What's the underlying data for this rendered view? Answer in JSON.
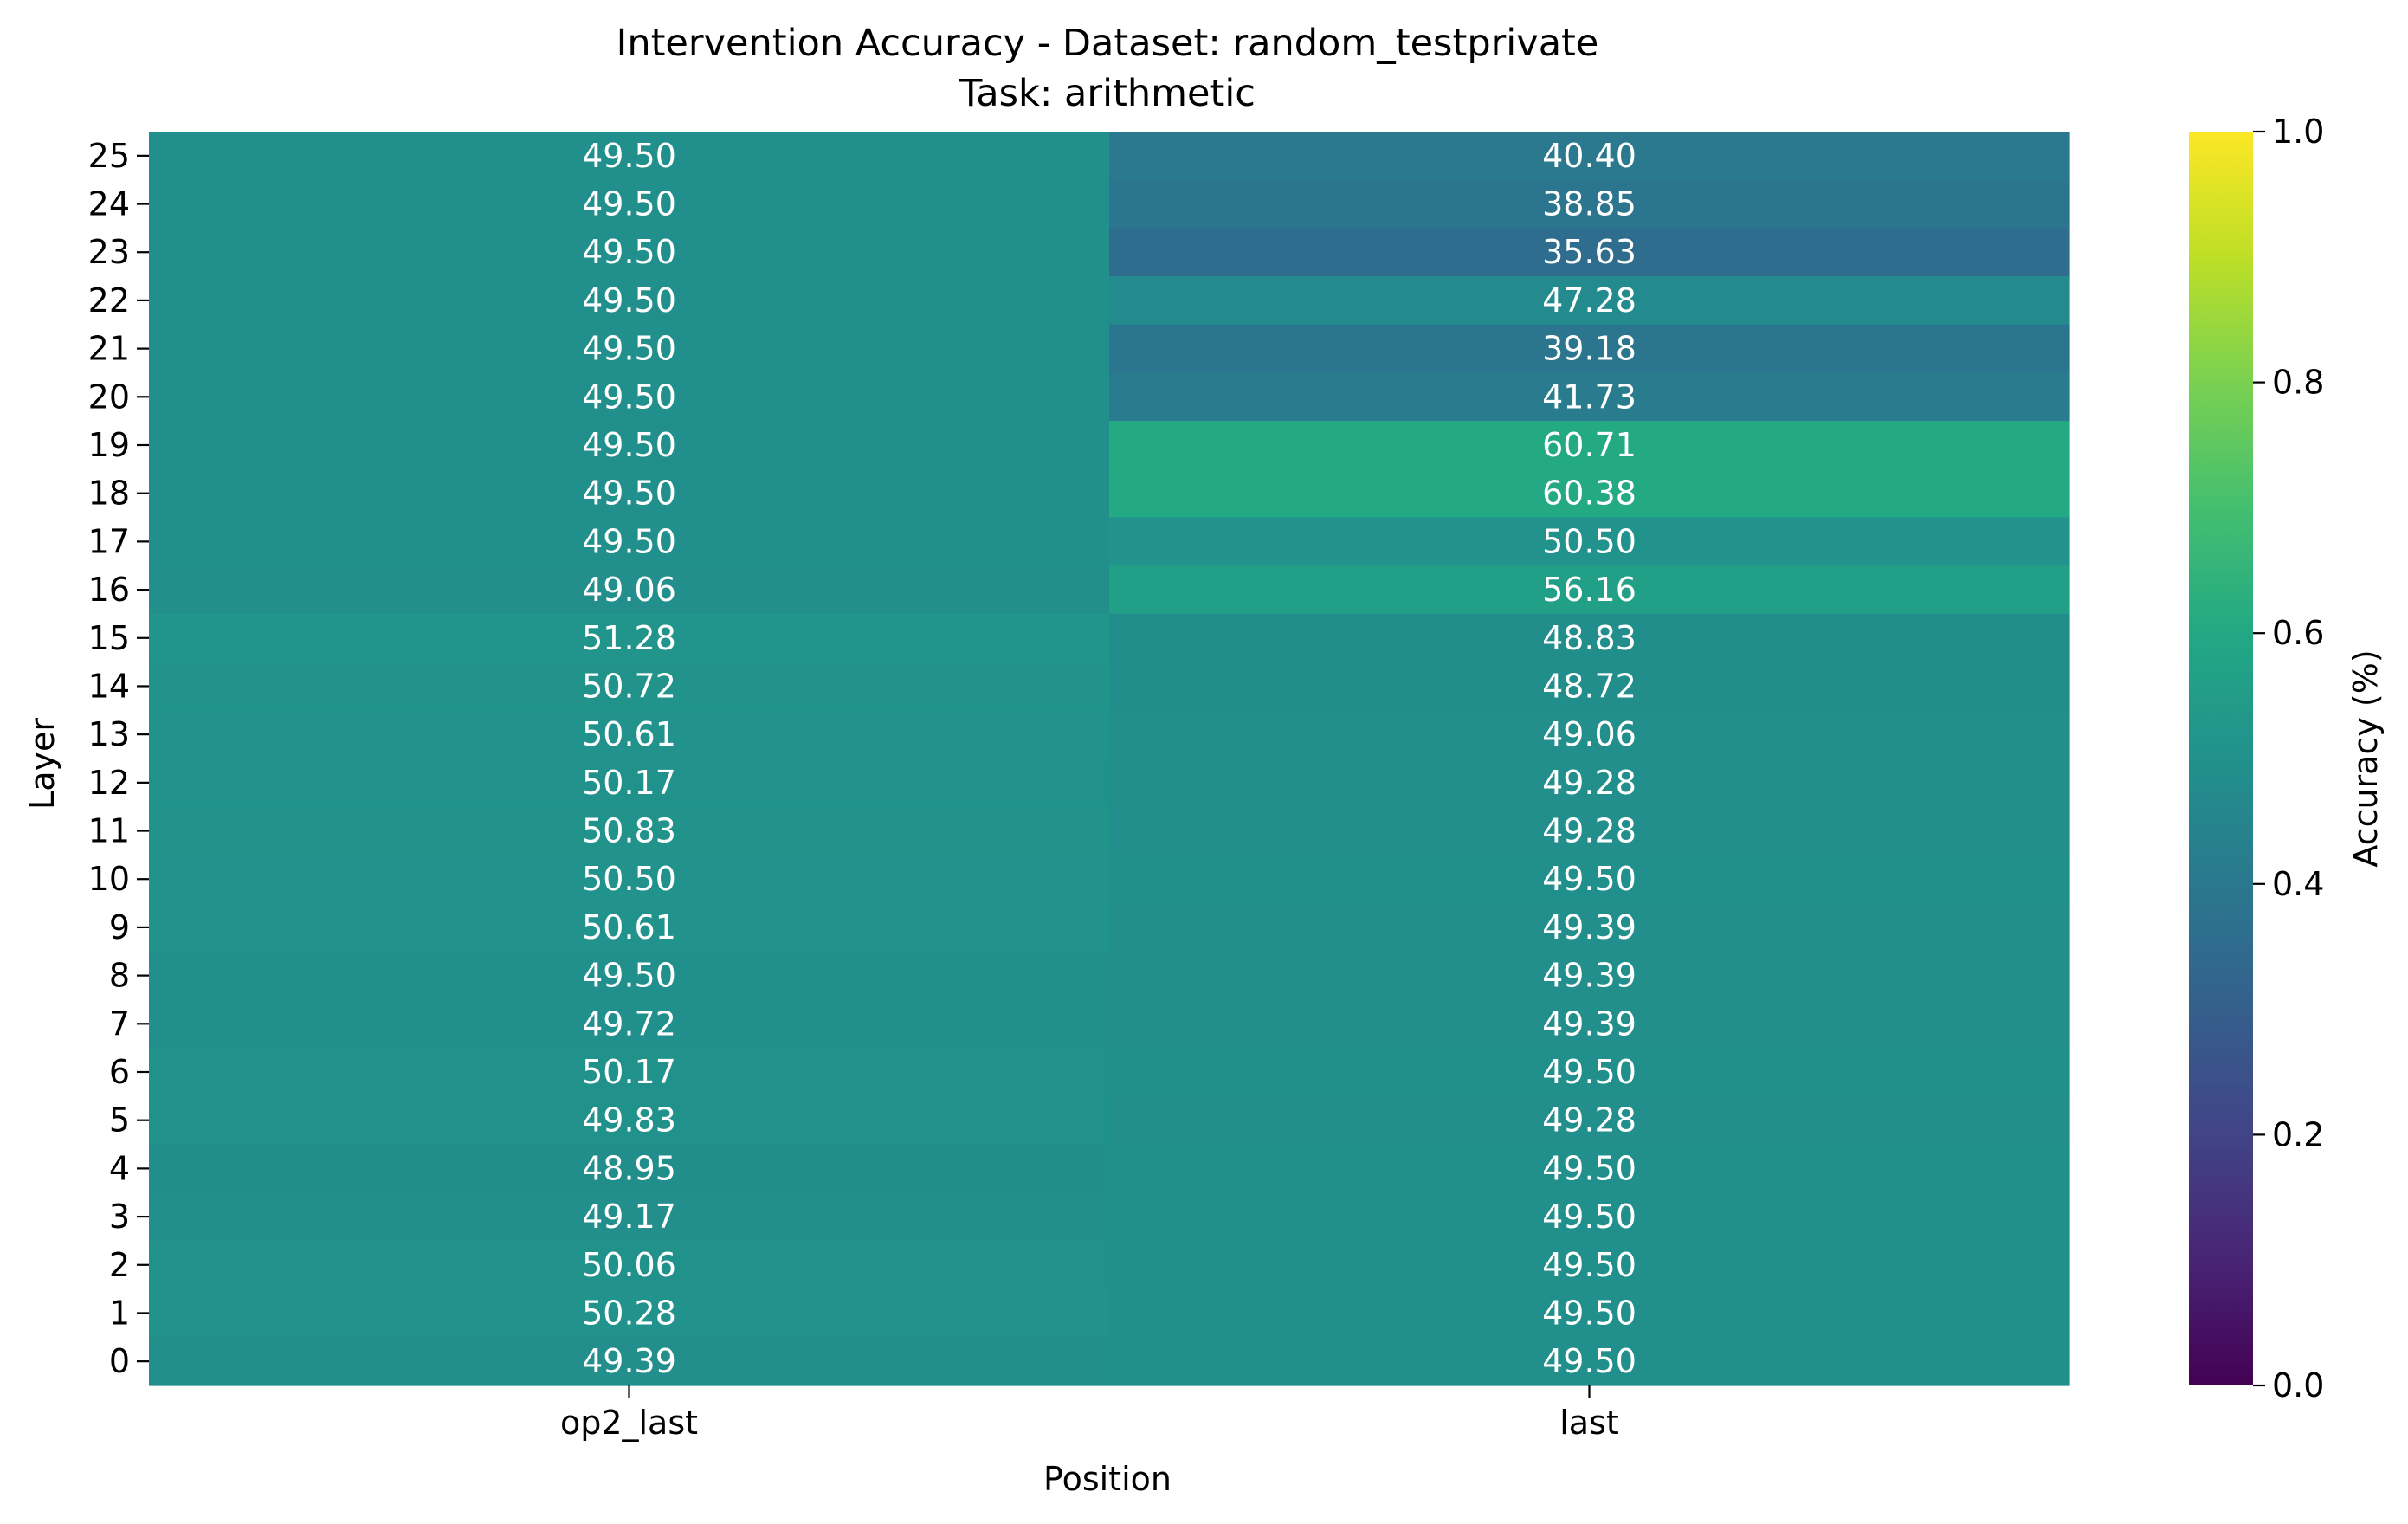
{
  "chart_data": {
    "type": "heatmap",
    "title_line1": "Intervention Accuracy - Dataset: random_testprivate",
    "title_line2": "Task: arithmetic",
    "xlabel": "Position",
    "ylabel": "Layer",
    "colorbar_label": "Accuracy (%)",
    "colormap": "viridis",
    "color_range": [
      0,
      1
    ],
    "colorbar_ticks": [
      "0.0",
      "0.2",
      "0.4",
      "0.6",
      "0.8",
      "1.0"
    ],
    "x_categories": [
      "op2_last",
      "last"
    ],
    "y_categories": [
      "25",
      "24",
      "23",
      "22",
      "21",
      "20",
      "19",
      "18",
      "17",
      "16",
      "15",
      "14",
      "13",
      "12",
      "11",
      "10",
      "9",
      "8",
      "7",
      "6",
      "5",
      "4",
      "3",
      "2",
      "1",
      "0"
    ],
    "values": [
      [
        49.5,
        40.4
      ],
      [
        49.5,
        38.85
      ],
      [
        49.5,
        35.63
      ],
      [
        49.5,
        47.28
      ],
      [
        49.5,
        39.18
      ],
      [
        49.5,
        41.73
      ],
      [
        49.5,
        60.71
      ],
      [
        49.5,
        60.38
      ],
      [
        49.5,
        50.5
      ],
      [
        49.06,
        56.16
      ],
      [
        51.28,
        48.83
      ],
      [
        50.72,
        48.72
      ],
      [
        50.61,
        49.06
      ],
      [
        50.17,
        49.28
      ],
      [
        50.83,
        49.28
      ],
      [
        50.5,
        49.5
      ],
      [
        50.61,
        49.39
      ],
      [
        49.5,
        49.39
      ],
      [
        49.72,
        49.39
      ],
      [
        50.17,
        49.5
      ],
      [
        49.83,
        49.28
      ],
      [
        48.95,
        49.5
      ],
      [
        49.17,
        49.5
      ],
      [
        50.06,
        49.5
      ],
      [
        50.28,
        49.5
      ],
      [
        49.39,
        49.5
      ]
    ]
  }
}
